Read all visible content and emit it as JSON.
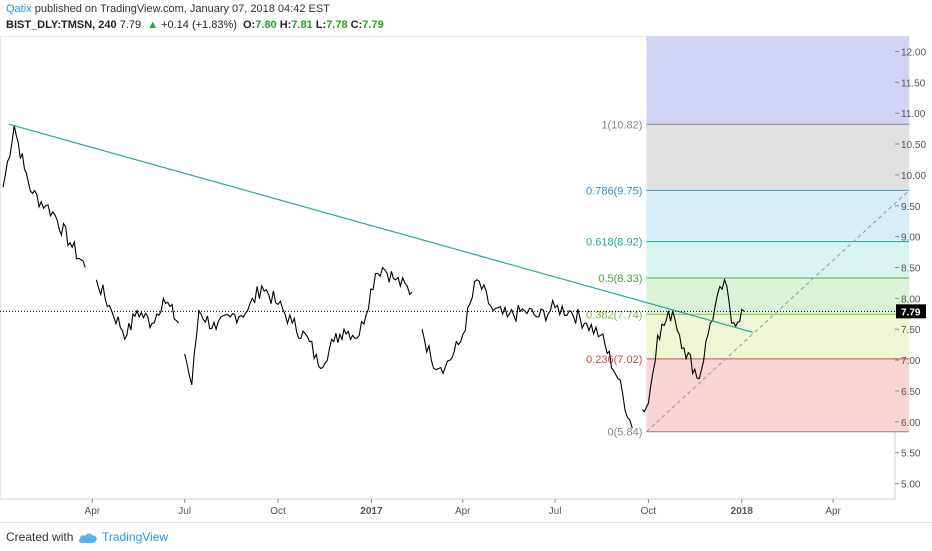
{
  "header": {
    "author": "Qatix",
    "published": "published on TradingView.com, January 07, 2018 04:42 EST",
    "symbol": "BIST_DLY:TMSN, 240",
    "last": "7.79",
    "up_arrow": "▲",
    "change": "+0.14 (+1.83%)",
    "o_label": "O:",
    "o_value": "7.80",
    "h_label": "H:",
    "h_value": "7.81",
    "l_label": "L:",
    "l_value": "7.78",
    "c_label": "C:",
    "c_value": "7.79"
  },
  "footer": {
    "created_with": "Created with",
    "brand": "TradingView"
  },
  "colors": {
    "candle": "#000000",
    "trendline": "#26a69a",
    "fib_guide": "#999999",
    "price_tag": "#000000"
  },
  "chart_data": {
    "type": "line",
    "symbol": "BIST_DLY:TMSN",
    "interval": "240",
    "last_price": "7.79",
    "x_axis_ticks": [
      "Apr",
      "Jul",
      "Oct",
      "2017",
      "Apr",
      "Jul",
      "Oct",
      "2018",
      "Apr"
    ],
    "x_axis_tick_dates": [
      "2016-04-01",
      "2016-07-01",
      "2016-10-01",
      "2017-01-01",
      "2017-04-01",
      "2017-07-01",
      "2017-10-01",
      "2018-01-01",
      "2018-04-01"
    ],
    "x_range": [
      "2016-01-01",
      "2018-06-01"
    ],
    "y_axis_ticks": [
      "12.00",
      "11.50",
      "11.00",
      "10.50",
      "10.00",
      "9.50",
      "9.00",
      "8.50",
      "8.00",
      "7.50",
      "7.00",
      "6.50",
      "6.00",
      "5.50",
      "5.00"
    ],
    "ylim": [
      4.75,
      12.25
    ],
    "grid": false,
    "price_series": {
      "name": "",
      "x": [
        "2016-01-04",
        "2016-01-15",
        "2016-01-25",
        "2016-02-02",
        "2016-02-15",
        "2016-02-22",
        "2016-03-10",
        "2016-03-25",
        "2016-04-05",
        "2016-04-20",
        "2016-05-05",
        "2016-05-15",
        "2016-05-30",
        "2016-06-10",
        "2016-06-25",
        "2016-07-01",
        "2016-07-08",
        "2016-07-15",
        "2016-08-01",
        "2016-08-15",
        "2016-09-01",
        "2016-09-15",
        "2016-10-01",
        "2016-10-15",
        "2016-11-01",
        "2016-11-10",
        "2016-11-25",
        "2016-12-05",
        "2016-12-20",
        "2017-01-05",
        "2017-01-12",
        "2017-01-25",
        "2017-02-10",
        "2017-02-20",
        "2017-03-01",
        "2017-03-15",
        "2017-03-30",
        "2017-04-15",
        "2017-05-01",
        "2017-05-15",
        "2017-06-01",
        "2017-06-15",
        "2017-07-01",
        "2017-07-15",
        "2017-08-01",
        "2017-08-15",
        "2017-09-01",
        "2017-09-15",
        "2017-09-25",
        "2017-10-01",
        "2017-10-10",
        "2017-10-25",
        "2017-11-05",
        "2017-11-20",
        "2017-12-01",
        "2017-12-15",
        "2017-12-22",
        "2018-01-03"
      ],
      "y": [
        9.8,
        10.8,
        10.1,
        9.7,
        9.5,
        9.4,
        8.9,
        8.5,
        8.3,
        7.8,
        7.4,
        7.8,
        7.6,
        8.0,
        7.6,
        7.1,
        6.6,
        7.8,
        7.5,
        7.7,
        7.8,
        8.2,
        7.9,
        7.6,
        7.3,
        6.9,
        7.3,
        7.5,
        7.4,
        8.4,
        8.5,
        8.3,
        8.1,
        7.5,
        7.0,
        6.9,
        7.3,
        8.3,
        7.8,
        7.7,
        7.8,
        7.7,
        7.85,
        7.8,
        7.6,
        7.4,
        6.7,
        5.9,
        6.2,
        6.3,
        7.4,
        7.8,
        7.2,
        6.7,
        7.6,
        8.3,
        7.6,
        7.79
      ],
      "gaps_after": [
        "2016-03-25",
        "2016-06-25",
        "2017-02-10",
        "2017-09-15"
      ]
    },
    "fibonacci": {
      "levels": [
        {
          "label": "1(10.82)",
          "ratio": "1",
          "value": 10.82,
          "line_color": "#888888",
          "text_color": "#888888",
          "fill": "#e0e0e0"
        },
        {
          "label": "0.786(9.75)",
          "ratio": "0.786",
          "value": 9.75,
          "line_color": "#4a9fc8",
          "text_color": "#3a8fb8",
          "fill": "#d7ebf8"
        },
        {
          "label": "0.618(8.92)",
          "ratio": "0.618",
          "value": 8.92,
          "line_color": "#26a69a",
          "text_color": "#26a69a",
          "fill": "#d9f3f0"
        },
        {
          "label": "0.5(8.33)",
          "ratio": "0.5",
          "value": 8.33,
          "line_color": "#4caf50",
          "text_color": "#43a047",
          "fill": "#dbf2d9"
        },
        {
          "label": "0.382(7.74)",
          "ratio": "0.382",
          "value": 7.74,
          "line_color": "#8bc34a",
          "text_color": "#7cb342",
          "fill": "#eef6d6"
        },
        {
          "label": "0.236(7.02)",
          "ratio": "0.236",
          "value": 7.02,
          "line_color": "#d44",
          "text_color": "#d44",
          "fill": "#f7d5d5"
        },
        {
          "label": "0(5.84)",
          "ratio": "0",
          "value": 5.84,
          "line_color": "#888888",
          "text_color": "#888888",
          "fill": null
        }
      ],
      "top_fill": "#d1d4f4",
      "top_extends_to": 12.25,
      "start_date": "2017-09-29",
      "end_date": "2018-06-15"
    },
    "trendline": {
      "start": {
        "x": "2016-01-10",
        "y": 10.82
      },
      "end": {
        "x": "2018-01-12",
        "y": 7.45
      }
    },
    "fib_guide": {
      "start": {
        "x": "2017-09-29",
        "y": 5.84
      },
      "end": {
        "x": "2018-06-15",
        "y": 9.75
      }
    }
  }
}
